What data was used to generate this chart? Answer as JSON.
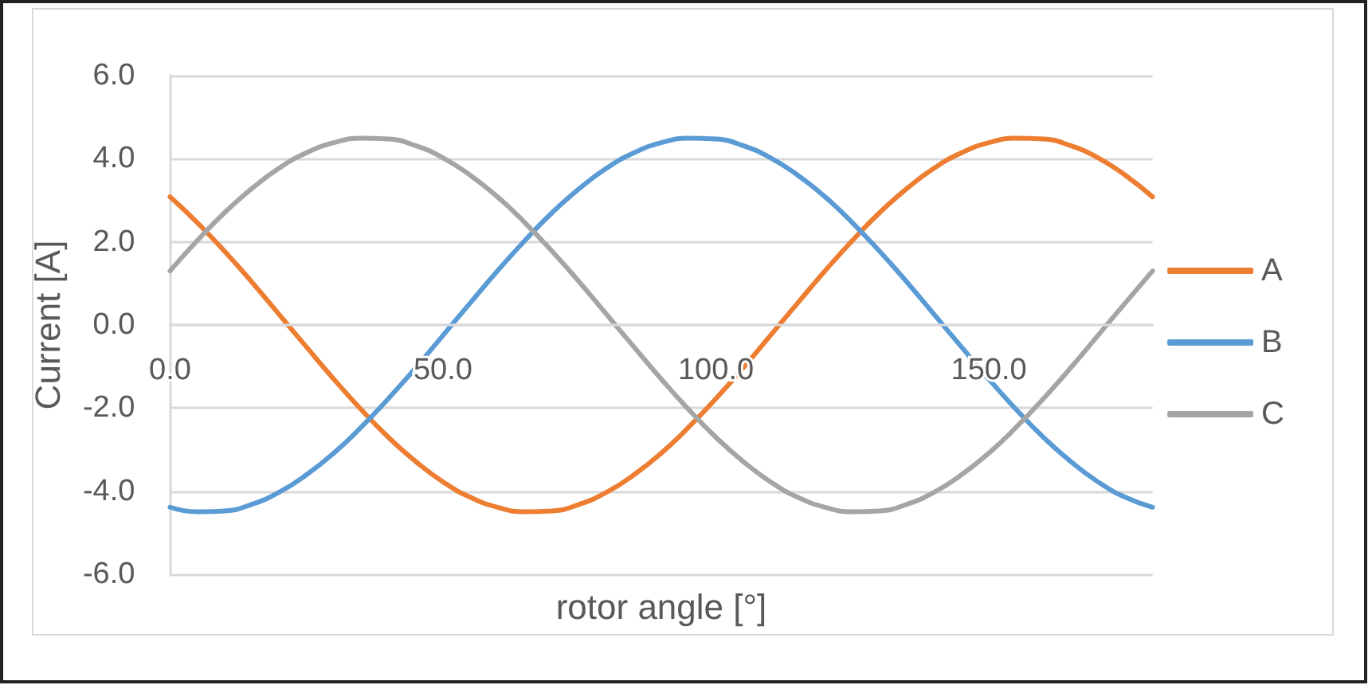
{
  "chart_data": {
    "type": "line",
    "xlabel": "rotor angle [°]",
    "ylabel": "Current [A]",
    "x": [
      0,
      5,
      10,
      15,
      20,
      25,
      30,
      35,
      40,
      45,
      50,
      55,
      60,
      65,
      70,
      75,
      80,
      85,
      90,
      95,
      100,
      105,
      110,
      115,
      120,
      125,
      130,
      135,
      140,
      145,
      150,
      155,
      160,
      165,
      170,
      175,
      180
    ],
    "series": [
      {
        "name": "A",
        "color": "#ed7d31",
        "values": [
          3.08,
          2.46,
          1.77,
          1.03,
          0.25,
          -0.53,
          -1.3,
          -2.03,
          -2.7,
          -3.28,
          -3.77,
          -4.14,
          -4.38,
          -4.49,
          -4.47,
          -4.31,
          -4.02,
          -3.6,
          -3.08,
          -2.46,
          -1.77,
          -1.03,
          -0.25,
          0.53,
          1.3,
          2.03,
          2.7,
          3.28,
          3.77,
          4.14,
          4.38,
          4.49,
          4.47,
          4.31,
          4.02,
          3.6,
          3.08
        ]
      },
      {
        "name": "B",
        "color": "#5b9bd5",
        "values": [
          -4.38,
          -4.49,
          -4.47,
          -4.31,
          -4.02,
          -3.6,
          -3.08,
          -2.46,
          -1.77,
          -1.03,
          -0.25,
          0.53,
          1.3,
          2.03,
          2.7,
          3.28,
          3.77,
          4.14,
          4.38,
          4.49,
          4.47,
          4.31,
          4.02,
          3.6,
          3.08,
          2.46,
          1.77,
          1.03,
          0.25,
          -0.53,
          -1.3,
          -2.03,
          -2.7,
          -3.28,
          -3.77,
          -4.14,
          -4.38
        ]
      },
      {
        "name": "C",
        "color": "#a5a5a5",
        "values": [
          1.3,
          2.03,
          2.7,
          3.28,
          3.77,
          4.14,
          4.38,
          4.49,
          4.47,
          4.31,
          4.02,
          3.6,
          3.08,
          2.46,
          1.77,
          1.03,
          0.25,
          -0.53,
          -1.3,
          -2.03,
          -2.7,
          -3.28,
          -3.77,
          -4.14,
          -4.38,
          -4.49,
          -4.47,
          -4.31,
          -4.02,
          -3.6,
          -3.08,
          -2.46,
          -1.77,
          -1.03,
          -0.25,
          0.53,
          1.3
        ]
      }
    ],
    "xlim": [
      0,
      180
    ],
    "xticks": [
      {
        "value": 0,
        "label": "0.0"
      },
      {
        "value": 50,
        "label": "50.0"
      },
      {
        "value": 100,
        "label": "100.0"
      },
      {
        "value": 150,
        "label": "150.0"
      }
    ],
    "ylim": [
      -6,
      6
    ],
    "yticks": [
      {
        "value": -6,
        "label": "-6.0"
      },
      {
        "value": -4,
        "label": "-4.0"
      },
      {
        "value": -2,
        "label": "-2.0"
      },
      {
        "value": 0,
        "label": "0.0"
      },
      {
        "value": 2,
        "label": "2.0"
      },
      {
        "value": 4,
        "label": "4.0"
      },
      {
        "value": 6,
        "label": "6.0"
      }
    ],
    "grid": "y",
    "legend": "right",
    "marker": "none",
    "line_style": "solid"
  }
}
